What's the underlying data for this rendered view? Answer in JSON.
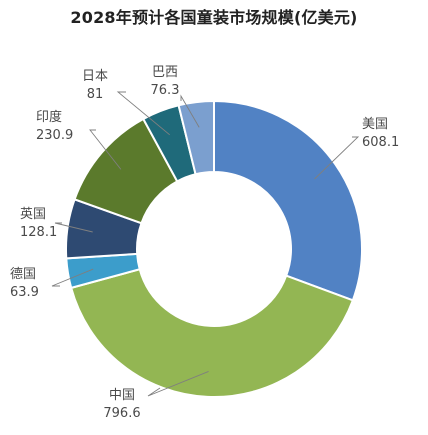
{
  "chart_data": {
    "type": "pie",
    "style": "donut",
    "title": "2028年预计各国童装市场规模(亿美元)",
    "slices": [
      {
        "label": "美国",
        "value": 608.1,
        "color": "#5182c4"
      },
      {
        "label": "中国",
        "value": 796.6,
        "color": "#93b653"
      },
      {
        "label": "德国",
        "value": 63.9,
        "color": "#3c9dcb"
      },
      {
        "label": "英国",
        "value": 128.1,
        "color": "#2e4a72"
      },
      {
        "label": "印度",
        "value": 230.9,
        "color": "#5b7a2c"
      },
      {
        "label": "日本",
        "value": 81,
        "color": "#1f6a7a"
      },
      {
        "label": "巴西",
        "value": 76.3,
        "color": "#7b9fcf"
      }
    ],
    "start_angle_deg": 90,
    "direction": "clockwise",
    "legend": "none"
  }
}
